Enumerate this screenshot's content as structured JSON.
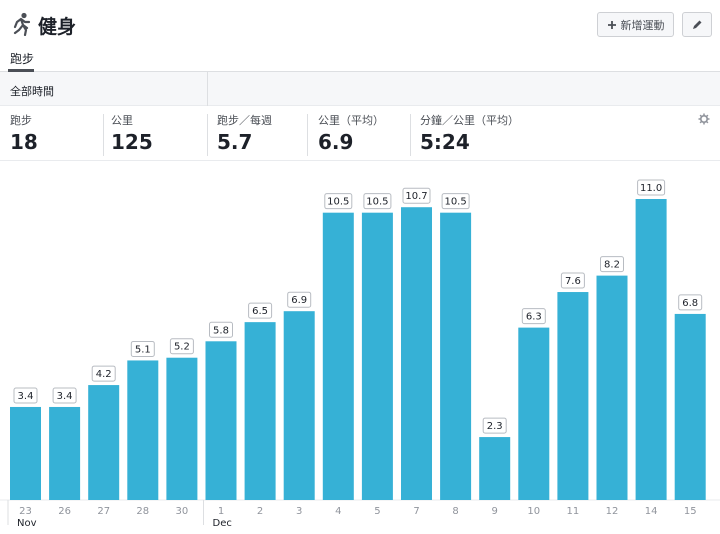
{
  "header": {
    "title": "健身",
    "add_button_label": "新增運動",
    "add_icon": "plus-icon",
    "edit_icon": "pencil-icon",
    "app_icon": "runner-icon"
  },
  "tabs": [
    {
      "label": "跑步",
      "active": true
    }
  ],
  "filter": {
    "label": "全部時間"
  },
  "stats": [
    {
      "label": "跑步",
      "value": "18"
    },
    {
      "label": "公里",
      "value": "125"
    },
    {
      "label": "跑步／每週",
      "value": "5.7"
    },
    {
      "label": "公里（平均）",
      "value": "6.9"
    },
    {
      "label": "分鐘／公里（平均）",
      "value": "5:24"
    }
  ],
  "settings_icon": "gear-icon",
  "colors": {
    "bar": "#36b1d6"
  },
  "chart_data": {
    "type": "bar",
    "categories": [
      "23",
      "26",
      "27",
      "28",
      "30",
      "1",
      "2",
      "3",
      "4",
      "5",
      "7",
      "8",
      "9",
      "10",
      "11",
      "12",
      "14",
      "15"
    ],
    "values": [
      3.4,
      3.4,
      4.2,
      5.1,
      5.2,
      5.8,
      6.5,
      6.9,
      10.5,
      10.5,
      10.7,
      10.5,
      2.3,
      6.3,
      7.6,
      8.2,
      11.0,
      6.8
    ],
    "value_labels": [
      "3.4",
      "3.4",
      "4.2",
      "5.1",
      "5.2",
      "5.8",
      "6.5",
      "6.9",
      "10.5",
      "10.5",
      "10.7",
      "10.5",
      "2.3",
      "6.3",
      "7.6",
      "8.2",
      "11.0",
      "6.8"
    ],
    "month_labels": [
      {
        "index": 0,
        "label": "Nov"
      },
      {
        "index": 5,
        "label": "Dec"
      }
    ],
    "title": "",
    "xlabel": "",
    "ylabel": "",
    "ylim": [
      0,
      11.5
    ],
    "grid": false
  }
}
